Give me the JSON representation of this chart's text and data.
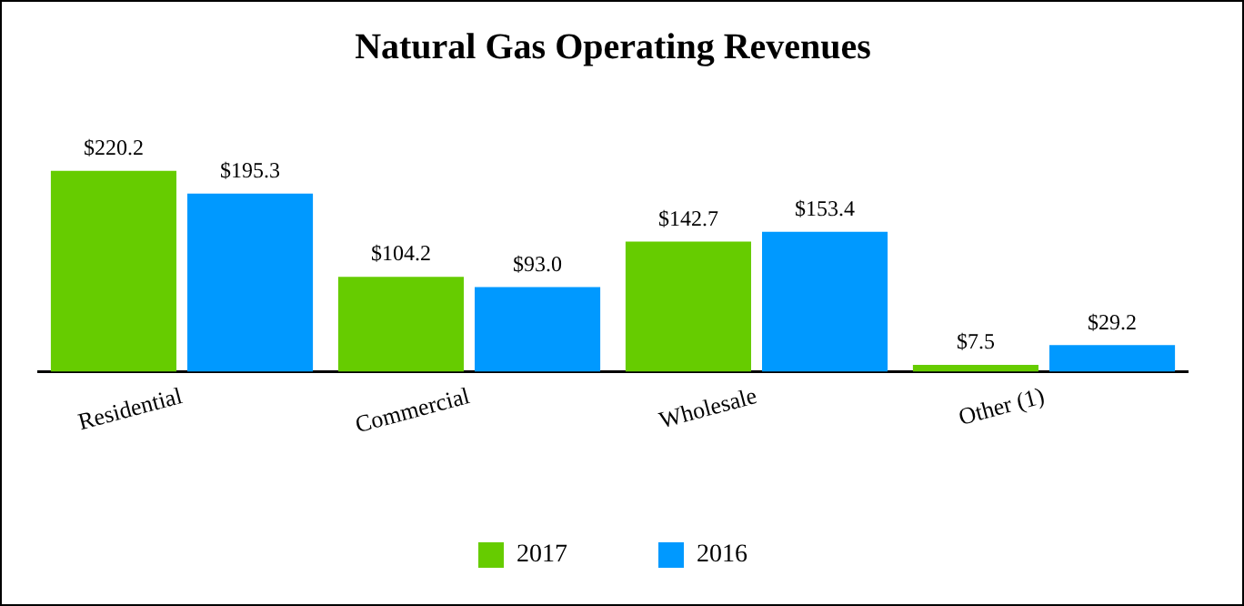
{
  "chart_data": {
    "type": "bar",
    "title": "Natural Gas Operating Revenues",
    "categories": [
      "Residential",
      "Commercial",
      "Wholesale",
      "Other (1)"
    ],
    "series": [
      {
        "name": "2017",
        "color": "#66cc00",
        "values": [
          220.2,
          104.2,
          142.7,
          7.5
        ],
        "value_labels": [
          "$220.2",
          "$104.2",
          "$142.7",
          "$7.5"
        ]
      },
      {
        "name": "2016",
        "color": "#0099ff",
        "values": [
          195.3,
          93.0,
          153.4,
          29.2
        ],
        "value_labels": [
          "$195.3",
          "$93.0",
          "$153.4",
          "$29.2"
        ]
      }
    ],
    "grid": false,
    "legend": "bottom",
    "tick_labels": "x"
  }
}
